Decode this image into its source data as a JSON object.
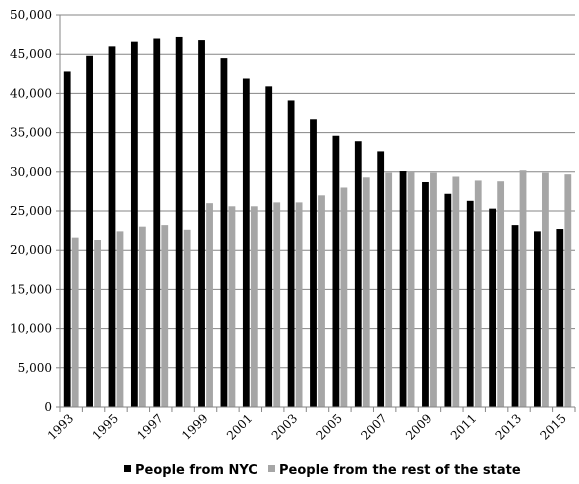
{
  "chart_data": {
    "type": "bar",
    "categories": [
      "1993",
      "1994",
      "1995",
      "1996",
      "1997",
      "1998",
      "1999",
      "2000",
      "2001",
      "2002",
      "2003",
      "2004",
      "2005",
      "2006",
      "2007",
      "2008",
      "2009",
      "2010",
      "2011",
      "2012",
      "2013",
      "2014",
      "2015"
    ],
    "x_tick_labels": [
      "1993",
      "",
      "1995",
      "",
      "1997",
      "",
      "1999",
      "",
      "2001",
      "",
      "2003",
      "",
      "2005",
      "",
      "2007",
      "",
      "2009",
      "",
      "2011",
      "",
      "2013",
      "",
      "2015"
    ],
    "series": [
      {
        "name": "People from NYC",
        "color": "#000000",
        "values": [
          42800,
          44800,
          46000,
          46600,
          47000,
          47200,
          46800,
          44500,
          41900,
          40900,
          39100,
          36700,
          34600,
          33900,
          32600,
          30100,
          28700,
          27200,
          26300,
          25300,
          23200,
          22400,
          22700
        ]
      },
      {
        "name": "People from the rest of the state",
        "color": "#a6a6a6",
        "values": [
          21600,
          21300,
          22400,
          23000,
          23200,
          22600,
          26000,
          25600,
          25600,
          26100,
          26100,
          27000,
          28000,
          29300,
          29900,
          30100,
          29900,
          29400,
          28900,
          28800,
          30200,
          29900,
          29700
        ]
      }
    ],
    "y_ticks": [
      "0",
      "5,000",
      "10,000",
      "15,000",
      "20,000",
      "25,000",
      "30,000",
      "35,000",
      "40,000",
      "45,000",
      "50,000"
    ],
    "ylim": [
      0,
      50000
    ],
    "grid": true,
    "legend_position": "bottom",
    "title": "",
    "xlabel": "",
    "ylabel": ""
  }
}
